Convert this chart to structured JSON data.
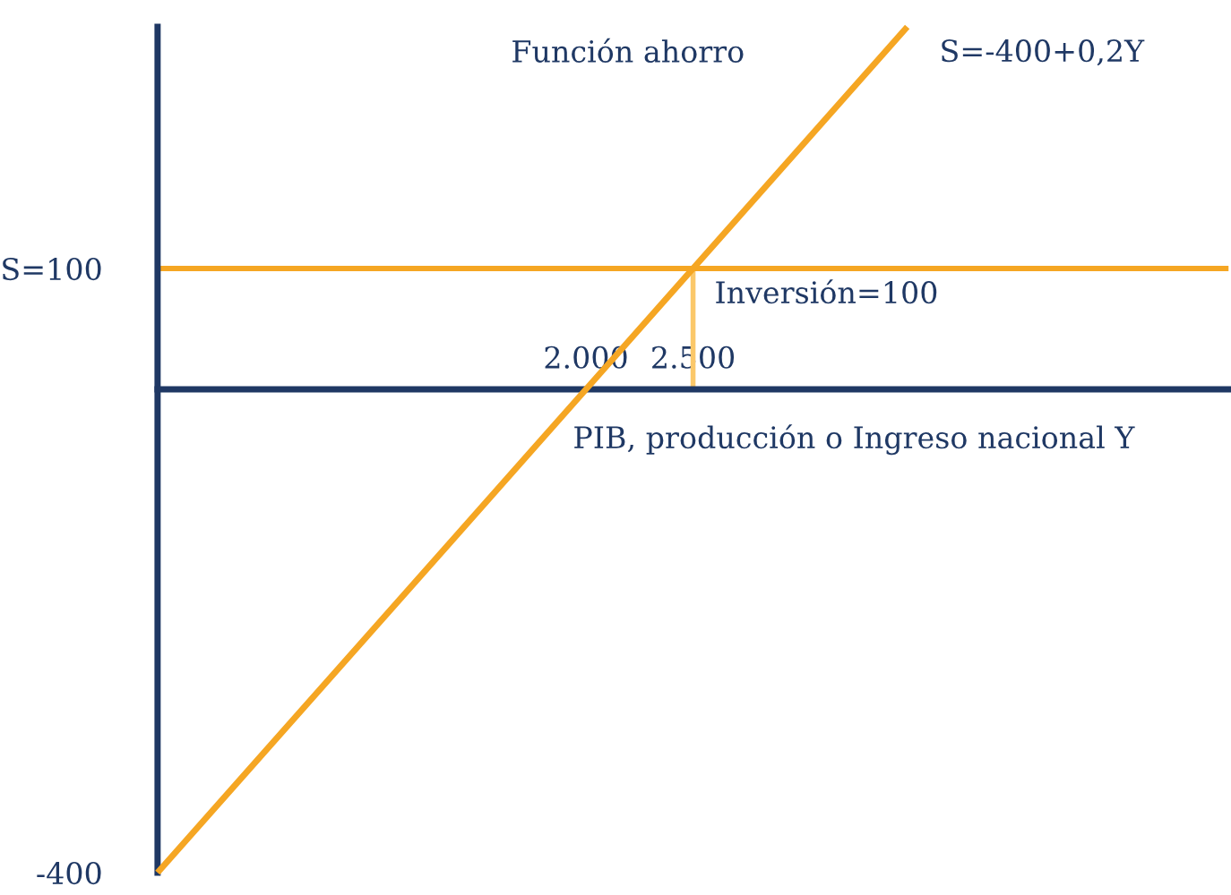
{
  "chart_data": {
    "type": "line",
    "xlabel": "PIB, producción o Ingreso nacional Y",
    "annotations": [
      "Función ahorro"
    ],
    "xlim": [
      0,
      5000
    ],
    "ylim": [
      -400,
      300
    ],
    "xticks": [
      {
        "value": 2000,
        "label": "2.000"
      },
      {
        "value": 2500,
        "label": "2.500"
      }
    ],
    "yticks": [
      {
        "value": 100,
        "label": "S=100"
      },
      {
        "value": -400,
        "label": "-400"
      }
    ],
    "series": [
      {
        "name": "S=-400+0,2Y",
        "color": "#f5a623",
        "x": [
          0,
          2000,
          2500,
          3500
        ],
        "values": [
          -400,
          0,
          100,
          300
        ]
      },
      {
        "color": "#fbc86a",
        "x": [
          2500,
          2500
        ],
        "values": [
          0,
          100
        ]
      }
    ],
    "ref_lines": [
      {
        "axis": "y",
        "value": 100,
        "label": "Inversión=100",
        "color": "#f5a623"
      }
    ],
    "grid": false,
    "legend": false,
    "marker": "none",
    "line_style": "solid"
  }
}
